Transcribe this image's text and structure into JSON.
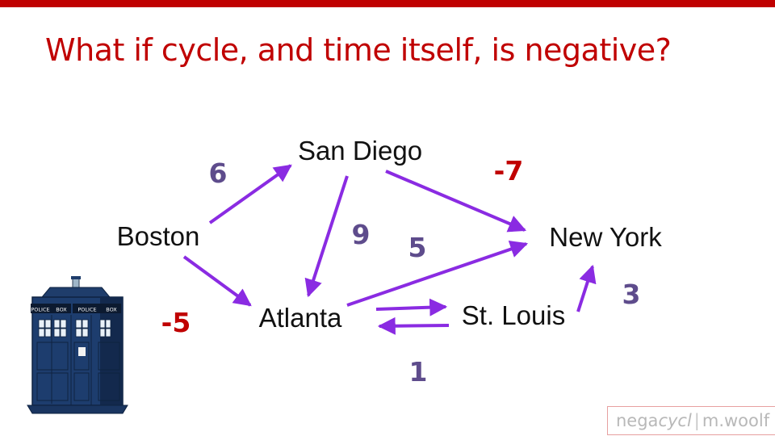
{
  "slide": {
    "title": "What if cycle, and time itself, is negative?"
  },
  "graph": {
    "nodes": [
      {
        "id": "boston",
        "label": "Boston"
      },
      {
        "id": "san-diego",
        "label": "San Diego"
      },
      {
        "id": "atlanta",
        "label": "Atlanta"
      },
      {
        "id": "st-louis",
        "label": "St. Louis"
      },
      {
        "id": "new-york",
        "label": "New York"
      }
    ],
    "edges": [
      {
        "id": "boston-san-diego",
        "from": "Boston",
        "to": "San Diego",
        "weight": "6"
      },
      {
        "id": "boston-atlanta",
        "from": "Boston",
        "to": "Atlanta",
        "weight": "-5"
      },
      {
        "id": "san-diego-atlanta",
        "from": "San Diego",
        "to": "Atlanta",
        "weight": "9"
      },
      {
        "id": "san-diego-new-york",
        "from": "San Diego",
        "to": "New York",
        "weight": "-7"
      },
      {
        "id": "atlanta-new-york",
        "from": "Atlanta",
        "to": "New York",
        "weight": "5"
      },
      {
        "id": "atlanta-st-louis",
        "from": "Atlanta",
        "to": "St. Louis",
        "weight": ""
      },
      {
        "id": "st-louis-atlanta",
        "from": "St. Louis",
        "to": "Atlanta",
        "weight": "1"
      },
      {
        "id": "st-louis-new-york",
        "from": "St. Louis",
        "to": "New York",
        "weight": "3"
      }
    ],
    "colors": {
      "edge": "#8a2be2",
      "positive_weight": "#5e4c8c",
      "negative_weight": "#c00000",
      "node_label": "#111111"
    }
  },
  "footer": {
    "brand_prefix": "nega",
    "brand_italic": "cycl",
    "separator": "|",
    "author": "m.woolf"
  },
  "illustration": {
    "icon": "police-box-icon",
    "sign_left": "POLICE",
    "sign_right": "BOX"
  }
}
